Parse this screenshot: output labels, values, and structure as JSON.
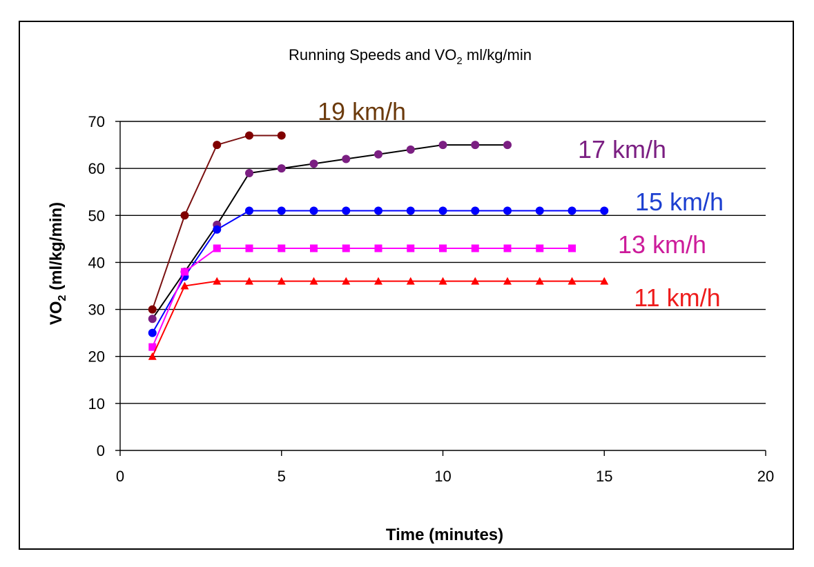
{
  "chart_data": {
    "type": "line",
    "title": "Running Speeds and VO",
    "title_subscript": "2",
    "title_suffix": " ml/kg/min",
    "xlabel": "Time (minutes)",
    "ylabel": "VO",
    "ylabel_subscript": "2",
    "ylabel_suffix": " (ml/kg/min)",
    "xlim": [
      0,
      20
    ],
    "ylim": [
      0,
      70
    ],
    "xticks": [
      0,
      5,
      10,
      15,
      20
    ],
    "yticks": [
      0,
      10,
      20,
      30,
      40,
      50,
      60,
      70
    ],
    "grid": "horizontal",
    "series": [
      {
        "name": "19 km/h",
        "line_color": "#7a1010",
        "marker_color": "#800000",
        "label_color": "#6b3a0c",
        "marker": "circle",
        "points": [
          [
            1,
            30
          ],
          [
            2,
            50
          ],
          [
            3,
            65
          ],
          [
            4,
            67
          ],
          [
            5,
            67
          ]
        ]
      },
      {
        "name": "17 km/h",
        "line_color": "#000000",
        "marker_color": "#7b1f82",
        "label_color": "#7b1f82",
        "marker": "circle",
        "points": [
          [
            1,
            28
          ],
          [
            2,
            38
          ],
          [
            3,
            48
          ],
          [
            4,
            59
          ],
          [
            5,
            60
          ],
          [
            6,
            61
          ],
          [
            7,
            62
          ],
          [
            8,
            63
          ],
          [
            9,
            64
          ],
          [
            10,
            65
          ],
          [
            11,
            65
          ],
          [
            12,
            65
          ]
        ]
      },
      {
        "name": "15 km/h",
        "line_color": "#0000ff",
        "marker_color": "#0000ff",
        "label_color": "#1c3fd0",
        "marker": "circle",
        "points": [
          [
            1,
            25
          ],
          [
            2,
            37
          ],
          [
            3,
            47
          ],
          [
            4,
            51
          ],
          [
            5,
            51
          ],
          [
            6,
            51
          ],
          [
            7,
            51
          ],
          [
            8,
            51
          ],
          [
            9,
            51
          ],
          [
            10,
            51
          ],
          [
            11,
            51
          ],
          [
            12,
            51
          ],
          [
            13,
            51
          ],
          [
            14,
            51
          ],
          [
            15,
            51
          ]
        ]
      },
      {
        "name": "13 km/h",
        "line_color": "#ff00ff",
        "marker_color": "#ff00ff",
        "label_color": "#cc1b9a",
        "marker": "square",
        "points": [
          [
            1,
            22
          ],
          [
            2,
            38
          ],
          [
            3,
            43
          ],
          [
            4,
            43
          ],
          [
            5,
            43
          ],
          [
            6,
            43
          ],
          [
            7,
            43
          ],
          [
            8,
            43
          ],
          [
            9,
            43
          ],
          [
            10,
            43
          ],
          [
            11,
            43
          ],
          [
            12,
            43
          ],
          [
            13,
            43
          ],
          [
            14,
            43
          ]
        ]
      },
      {
        "name": "11 km/h",
        "line_color": "#ff0000",
        "marker_color": "#ff0000",
        "label_color": "#ee1c1c",
        "marker": "triangle",
        "points": [
          [
            1,
            20
          ],
          [
            2,
            35
          ],
          [
            3,
            36
          ],
          [
            4,
            36
          ],
          [
            5,
            36
          ],
          [
            6,
            36
          ],
          [
            7,
            36
          ],
          [
            8,
            36
          ],
          [
            9,
            36
          ],
          [
            10,
            36
          ],
          [
            11,
            36
          ],
          [
            12,
            36
          ],
          [
            13,
            36
          ],
          [
            14,
            36
          ],
          [
            15,
            36
          ]
        ]
      }
    ]
  }
}
